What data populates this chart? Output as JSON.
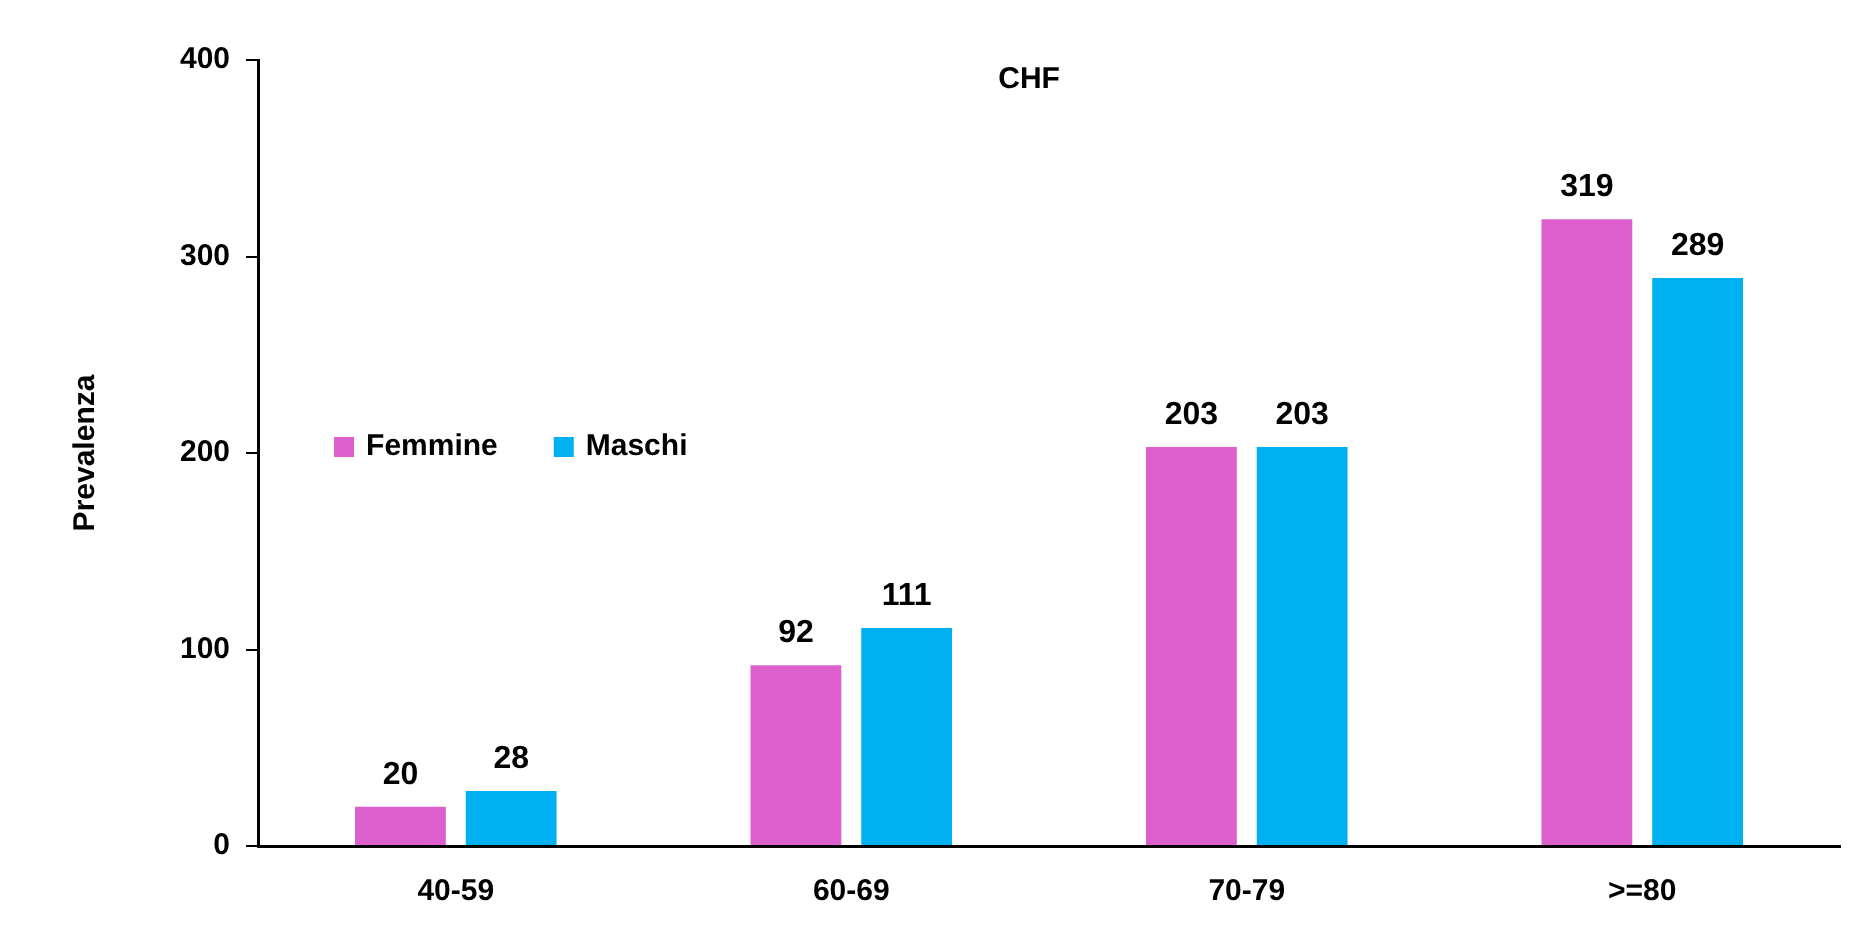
{
  "chart_data": {
    "type": "bar",
    "title": "CHF",
    "ylabel": "Prevalenza",
    "categories": [
      "40-59",
      "60-69",
      "70-79",
      ">=80"
    ],
    "series": [
      {
        "name": "Femmine",
        "color": "#dc5fcd",
        "values": [
          20,
          92,
          203,
          319
        ]
      },
      {
        "name": "Maschi",
        "color": "#00b0f0",
        "values": [
          28,
          111,
          203,
          289
        ]
      }
    ],
    "ylim": [
      0,
      400
    ],
    "yticks": [
      0,
      100,
      200,
      300,
      400
    ],
    "grid": false,
    "legend": "left",
    "data_labels": true
  }
}
